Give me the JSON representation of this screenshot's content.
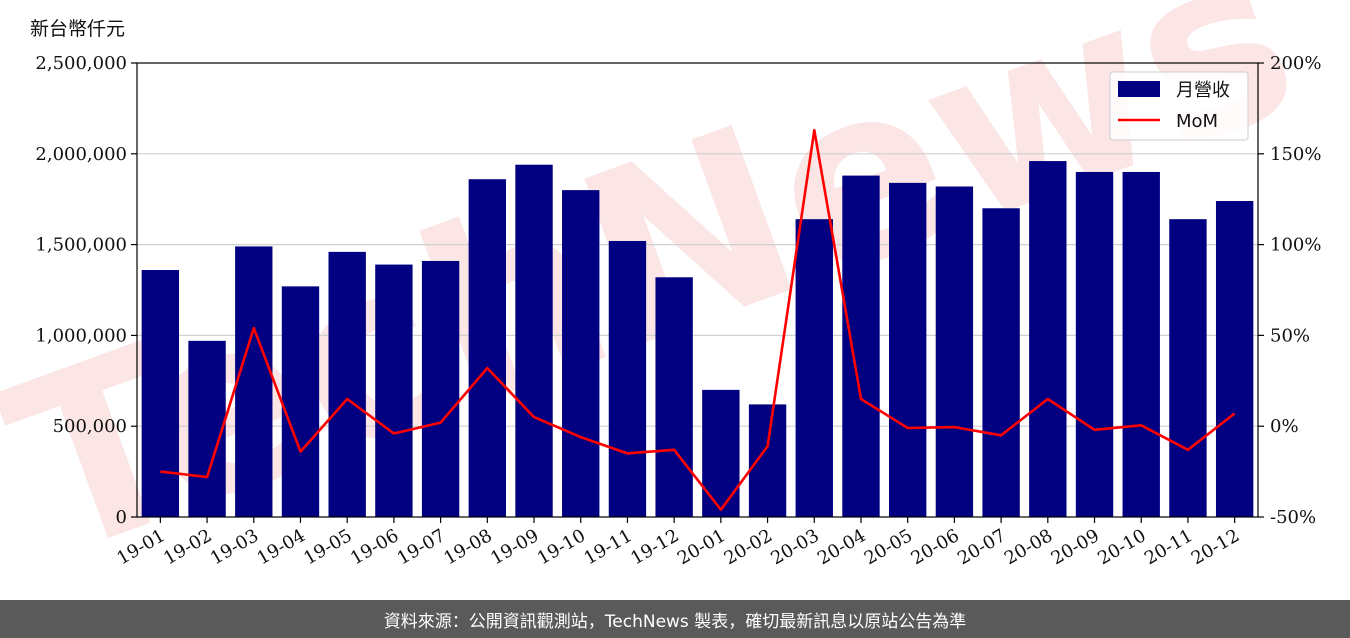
{
  "unit_label": "新台幣仟元",
  "footer_text": "資料來源：公開資訊觀測站，TechNews 製表，確切最新訊息以原站公告為準",
  "watermark": "TechNews",
  "colors": {
    "bar": "#000080",
    "line": "#ff0000",
    "footer_bg": "#5a5a5a",
    "watermark": "#f8d0d0"
  },
  "chart_data": {
    "type": "bar",
    "categories": [
      "19-01",
      "19-02",
      "19-03",
      "19-04",
      "19-05",
      "19-06",
      "19-07",
      "19-08",
      "19-09",
      "19-10",
      "19-11",
      "19-12",
      "20-01",
      "20-02",
      "20-03",
      "20-04",
      "20-05",
      "20-06",
      "20-07",
      "20-08",
      "20-09",
      "20-10",
      "20-11",
      "20-12"
    ],
    "series": [
      {
        "name": "月營收",
        "type": "bar",
        "axis": "left",
        "values": [
          1360000,
          970000,
          1490000,
          1270000,
          1460000,
          1390000,
          1410000,
          1860000,
          1940000,
          1800000,
          1520000,
          1320000,
          700000,
          620000,
          1640000,
          1880000,
          1840000,
          1820000,
          1700000,
          1960000,
          1900000,
          1900000,
          1640000,
          1740000
        ]
      },
      {
        "name": "MoM",
        "type": "line",
        "axis": "right",
        "values": [
          -25,
          -28,
          54,
          -14,
          15,
          -4,
          2,
          32,
          5,
          -6,
          -15,
          -13,
          -46,
          -11,
          163,
          15,
          -1,
          -0.5,
          -5,
          15,
          -2,
          0.5,
          -13,
          7
        ]
      }
    ],
    "ylim_left": [
      0,
      2500000
    ],
    "ylim_right": [
      -50,
      200
    ],
    "yticks_left": [
      "0",
      "500,000",
      "1,000,000",
      "1,500,000",
      "2,000,000",
      "2,500,000"
    ],
    "yticks_left_values": [
      0,
      500000,
      1000000,
      1500000,
      2000000,
      2500000
    ],
    "yticks_right": [
      "-50%",
      "0%",
      "50%",
      "100%",
      "150%",
      "200%"
    ],
    "yticks_right_values": [
      -50,
      0,
      50,
      100,
      150,
      200
    ],
    "grid": "horizontal",
    "legend_position": "top-right"
  }
}
